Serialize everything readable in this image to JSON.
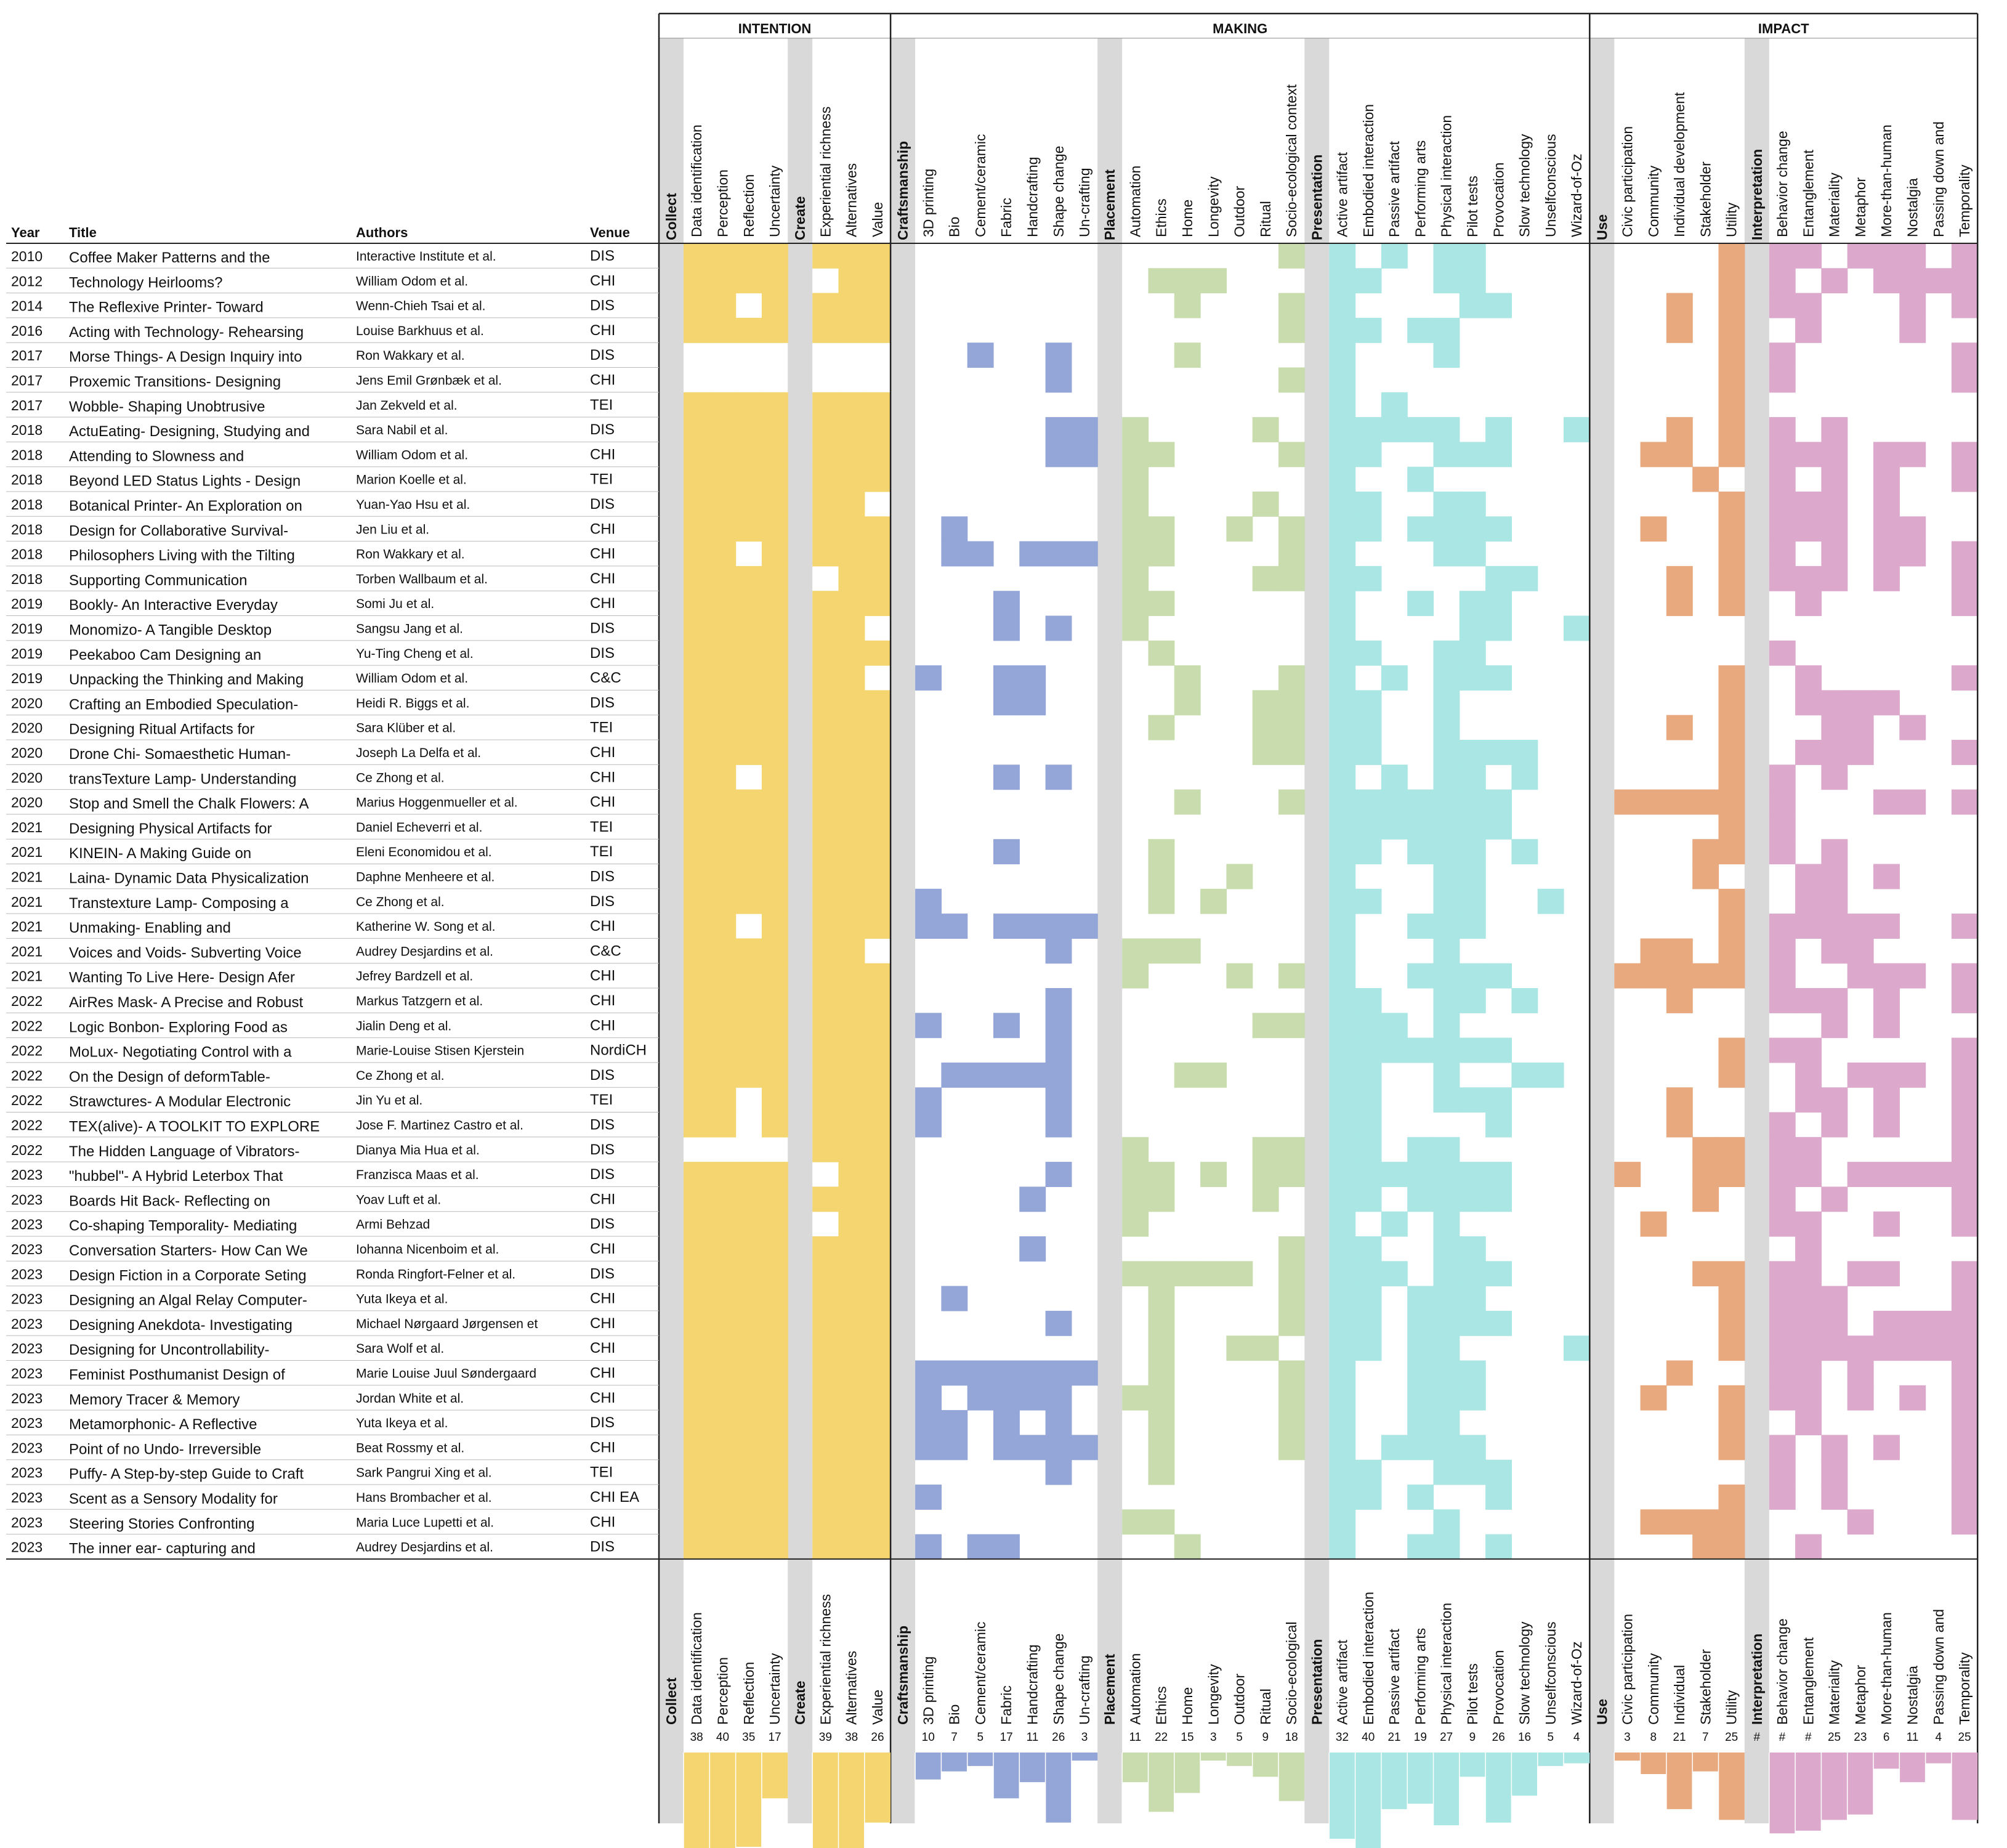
{
  "table_headers": {
    "year": "Year",
    "title": "Title",
    "authors": "Authors",
    "venue": "Venue"
  },
  "groups": [
    {
      "name": "INTENTION",
      "color": "#f4d56f",
      "subgroups": [
        {
          "label": "Collect",
          "columns": [
            "Data identification",
            "Perception",
            "Reflection",
            "Uncertainty"
          ]
        },
        {
          "label": "Create",
          "columns": [
            "Experiential richness",
            "Alternatives",
            "Value"
          ]
        }
      ]
    },
    {
      "name": "MAKING",
      "colors": [
        "#94a6d8",
        "#c9dcae",
        "#a9e6e4"
      ],
      "subgroups": [
        {
          "label": "Craftsmanship",
          "color": "#94a6d8",
          "columns": [
            "3D printing",
            "Bio",
            "Cement/ceramic",
            "Fabric",
            "Handcrafting",
            "Shape change",
            "Un-crafting"
          ]
        },
        {
          "label": "Placement",
          "color": "#c9dcae",
          "columns": [
            "Automation",
            "Ethics",
            "Home",
            "Longevity",
            "Outdoor",
            "Ritual",
            "Socio-ecological context"
          ]
        },
        {
          "label": "Presentation",
          "color": "#a9e6e4",
          "columns": [
            "Active artifact",
            "Embodied interaction",
            "Passive artifact",
            "Performing arts",
            "Physical interaction",
            "Pilot tests",
            "Provocation",
            "Slow technology",
            "Unselfconscious",
            "Wizard-of-Oz"
          ]
        }
      ]
    },
    {
      "name": "IMPACT",
      "colors": [
        "#e8a97e",
        "#dca8cc"
      ],
      "subgroups": [
        {
          "label": "Use",
          "color": "#e8a97e",
          "columns": [
            "Civic participation",
            "Community",
            "Individual development",
            "Stakeholder",
            "Utility"
          ]
        },
        {
          "label": "Interpretation",
          "color": "#dca8cc",
          "columns": [
            "Behavior change",
            "Entanglement",
            "Materiality",
            "Metaphor",
            "More-than-human",
            "Nostalgia",
            "Passing down and",
            "Temporality"
          ]
        }
      ]
    }
  ],
  "bottom_labels": {
    "Socio-ecological context": "Socio-ecological",
    "Individual development": "Individual"
  },
  "papers": [
    {
      "year": "2010",
      "title": "Coffee Maker Patterns and the",
      "authors": "Interactive Institute et al.",
      "venue": "DIS"
    },
    {
      "year": "2012",
      "title": "Technology Heirlooms?",
      "authors": "William Odom et al.",
      "venue": "CHI"
    },
    {
      "year": "2014",
      "title": "The Reflexive Printer- Toward",
      "authors": "Wenn-Chieh Tsai et al.",
      "venue": "DIS"
    },
    {
      "year": "2016",
      "title": "Acting with Technology- Rehearsing",
      "authors": "Louise Barkhuus et al.",
      "venue": "CHI"
    },
    {
      "year": "2017",
      "title": "Morse Things- A Design Inquiry into",
      "authors": "Ron Wakkary et al.",
      "venue": "DIS"
    },
    {
      "year": "2017",
      "title": "Proxemic Transitions- Designing",
      "authors": "Jens Emil Grønbæk et al.",
      "venue": "CHI"
    },
    {
      "year": "2017",
      "title": "Wobble- Shaping Unobtrusive",
      "authors": "Jan Zekveld et al.",
      "venue": "TEI"
    },
    {
      "year": "2018",
      "title": "ActuEating- Designing, Studying and",
      "authors": "Sara Nabil et al.",
      "venue": "DIS"
    },
    {
      "year": "2018",
      "title": "Attending to Slowness and",
      "authors": "William Odom et al.",
      "venue": "CHI"
    },
    {
      "year": "2018",
      "title": "Beyond LED Status Lights - Design",
      "authors": "Marion Koelle et al.",
      "venue": "TEI"
    },
    {
      "year": "2018",
      "title": "Botanical Printer- An Exploration on",
      "authors": "Yuan-Yao Hsu et al.",
      "venue": "DIS"
    },
    {
      "year": "2018",
      "title": "Design for Collaborative Survival-",
      "authors": "Jen Liu et al.",
      "venue": "CHI"
    },
    {
      "year": "2018",
      "title": "Philosophers Living with the Tilting",
      "authors": "Ron Wakkary et al.",
      "venue": "CHI"
    },
    {
      "year": "2018",
      "title": "Supporting Communication",
      "authors": "Torben Wallbaum et al.",
      "venue": "CHI"
    },
    {
      "year": "2019",
      "title": "Bookly- An Interactive Everyday",
      "authors": "Somi Ju et al.",
      "venue": "CHI"
    },
    {
      "year": "2019",
      "title": "Monomizo- A Tangible Desktop",
      "authors": "Sangsu Jang et al.",
      "venue": "DIS"
    },
    {
      "year": "2019",
      "title": "Peekaboo Cam Designing an",
      "authors": "Yu-Ting Cheng et al.",
      "venue": "DIS"
    },
    {
      "year": "2019",
      "title": "Unpacking the Thinking and Making",
      "authors": "William Odom et al.",
      "venue": "C&C"
    },
    {
      "year": "2020",
      "title": "Crafting an Embodied Speculation-",
      "authors": "Heidi R. Biggs et al.",
      "venue": "DIS"
    },
    {
      "year": "2020",
      "title": "Designing Ritual Artifacts for",
      "authors": "Sara Klüber et al.",
      "venue": "TEI"
    },
    {
      "year": "2020",
      "title": "Drone Chi- Somaesthetic Human-",
      "authors": "Joseph La Delfa et al.",
      "venue": "CHI"
    },
    {
      "year": "2020",
      "title": "transTexture Lamp- Understanding",
      "authors": "Ce Zhong et al.",
      "venue": "CHI"
    },
    {
      "year": "2020",
      "title": "Stop and Smell the Chalk Flowers: A",
      "authors": "Marius Hoggenmueller et al.",
      "venue": "CHI"
    },
    {
      "year": "2021",
      "title": "Designing Physical Artifacts for",
      "authors": "Daniel Echeverri et al.",
      "venue": "TEI"
    },
    {
      "year": "2021",
      "title": "KINEIN- A Making Guide on",
      "authors": "Eleni Economidou et al.",
      "venue": "TEI"
    },
    {
      "year": "2021",
      "title": "Laina- Dynamic Data Physicalization",
      "authors": "Daphne Menheere et al.",
      "venue": "DIS"
    },
    {
      "year": "2021",
      "title": "Transtexture Lamp- Composing a",
      "authors": "Ce Zhong et al.",
      "venue": "DIS"
    },
    {
      "year": "2021",
      "title": "Unmaking- Enabling and",
      "authors": "Katherine W. Song et al.",
      "venue": "CHI"
    },
    {
      "year": "2021",
      "title": "Voices and Voids- Subverting Voice",
      "authors": "Audrey Desjardins et al.",
      "venue": "C&C"
    },
    {
      "year": "2021",
      "title": "Wanting To Live Here- Design Afer",
      "authors": "Jefrey Bardzell et al.",
      "venue": "CHI"
    },
    {
      "year": "2022",
      "title": "AirRes Mask- A Precise and Robust",
      "authors": "Markus Tatzgern et al.",
      "venue": "CHI"
    },
    {
      "year": "2022",
      "title": "Logic Bonbon- Exploring Food as",
      "authors": "Jialin Deng et al.",
      "venue": "CHI"
    },
    {
      "year": "2022",
      "title": "MoLux- Negotiating Control with a",
      "authors": "Marie-Louise Stisen Kjerstein",
      "venue": "NordiCH"
    },
    {
      "year": "2022",
      "title": "On the Design of deformTable-",
      "authors": "Ce Zhong et al.",
      "venue": "DIS"
    },
    {
      "year": "2022",
      "title": "Strawctures- A Modular Electronic",
      "authors": "Jin Yu et al.",
      "venue": "TEI"
    },
    {
      "year": "2022",
      "title": "TEX(alive)- A TOOLKIT TO EXPLORE",
      "authors": "Jose F. Martinez Castro et al.",
      "venue": "DIS"
    },
    {
      "year": "2022",
      "title": "The Hidden Language of Vibrators-",
      "authors": "Dianya Mia Hua et al.",
      "venue": "DIS"
    },
    {
      "year": "2023",
      "title": "\"hubbel\"- A Hybrid Leterbox That",
      "authors": "Franzisca Maas et al.",
      "venue": "DIS"
    },
    {
      "year": "2023",
      "title": "Boards Hit Back- Reflecting on",
      "authors": "Yoav Luft et al.",
      "venue": "CHI"
    },
    {
      "year": "2023",
      "title": "Co-shaping Temporality- Mediating",
      "authors": "Armi Behzad",
      "venue": "DIS"
    },
    {
      "year": "2023",
      "title": "Conversation Starters- How Can We",
      "authors": "Iohanna Nicenboim et al.",
      "venue": "CHI"
    },
    {
      "year": "2023",
      "title": "Design Fiction in a Corporate Seting",
      "authors": "Ronda Ringfort-Felner et al.",
      "venue": "DIS"
    },
    {
      "year": "2023",
      "title": "Designing an Algal Relay Computer-",
      "authors": "Yuta Ikeya et al.",
      "venue": "CHI"
    },
    {
      "year": "2023",
      "title": "Designing Anekdota- Investigating",
      "authors": "Michael Nørgaard Jørgensen et",
      "venue": "CHI"
    },
    {
      "year": "2023",
      "title": "Designing for Uncontrollability-",
      "authors": "Sara Wolf et al.",
      "venue": "CHI"
    },
    {
      "year": "2023",
      "title": "Feminist Posthumanist Design of",
      "authors": "Marie Louise Juul Søndergaard",
      "venue": "CHI"
    },
    {
      "year": "2023",
      "title": "Memory Tracer & Memory",
      "authors": "Jordan White et al.",
      "venue": "CHI"
    },
    {
      "year": "2023",
      "title": "Metamorphonic- A Reflective",
      "authors": "Yuta Ikeya et al.",
      "venue": "DIS"
    },
    {
      "year": "2023",
      "title": "Point of no Undo- Irreversible",
      "authors": "Beat Rossmy et al.",
      "venue": "CHI"
    },
    {
      "year": "2023",
      "title": "Puffy- A Step-by-step Guide to Craft",
      "authors": "Sark Pangrui Xing et al.",
      "venue": "TEI"
    },
    {
      "year": "2023",
      "title": "Scent as a Sensory Modality for",
      "authors": "Hans Brombacher et al.",
      "venue": "CHI EA"
    },
    {
      "year": "2023",
      "title": "Steering Stories Confronting",
      "authors": "Maria Luce Lupetti et al.",
      "venue": "CHI"
    },
    {
      "year": "2023",
      "title": "The inner ear- capturing and",
      "authors": "Audrey Desjardins et al.",
      "venue": "DIS"
    }
  ],
  "chart_data": {
    "type": "heatmap",
    "title": "",
    "columns": [
      "Data identification",
      "Perception",
      "Reflection",
      "Uncertainty",
      "Experiential richness",
      "Alternatives",
      "Value",
      "3D printing",
      "Bio",
      "Cement/ceramic",
      "Fabric",
      "Handcrafting",
      "Shape change",
      "Un-crafting",
      "Automation",
      "Ethics",
      "Home",
      "Longevity",
      "Outdoor",
      "Ritual",
      "Socio-ecological context",
      "Active artifact",
      "Embodied interaction",
      "Passive artifact",
      "Performing arts",
      "Physical interaction",
      "Pilot tests",
      "Provocation",
      "Slow technology",
      "Unselfconscious",
      "Wizard-of-Oz",
      "Civic participation",
      "Community",
      "Individual development",
      "Stakeholder",
      "Utility",
      "Behavior change",
      "Entanglement",
      "Materiality",
      "Metaphor",
      "More-than-human",
      "Nostalgia",
      "Passing down and",
      "Temporality"
    ],
    "matrix": [
      "1111111 0000000 0000001 1010110000 00001 11011101",
      "1111011 0000000 0111000 1100110000 00001 10101111",
      "1101111 0000000 0010001 1000011000 00101 11000101",
      "1111111 0000000 0000001 1101100000 00101 01000100",
      "0000000 0010010 0010000 1000100000 00001 10000001",
      "0000000 0000010 0000001 1000000000 00001 10000001",
      "1111111 0000000 0000000 1010000000 00001 00000000",
      "1111111 0000011 1000010 1111101001 00101 10100000",
      "1111111 0000011 1100001 1100111000 01101 11101101",
      "1111111 0000000 1000000 1001000000 00010 10101001",
      "1111110 0000000 1000010 1100110000 00001 11101000",
      "1111111 0100000 1100101 1101111000 01001 11101100",
      "1101111 0110111 1100001 1000110000 00001 10101101",
      "1111011 0000000 1000011 1100001100 00101 11101001",
      "1111111 0001000 1100000 1001011000 00101 01000001",
      "1111110 0001010 1000000 1000011001 00000 00000000",
      "1111111 0000000 0100000 1100110000 00000 10000000",
      "1111110 1001100 0010001 1010111000 00001 01000001",
      "1111111 0001100 0010011 1100100000 00001 01111000",
      "1111111 0000000 0100011 1100100000 00101 00110100",
      "1111111 0000000 0000011 1100111100 00001 01110001",
      "1101111 0001010 0000000 1010110100 00001 10100000",
      "1111111 0000000 0010001 1111111000 11111 10001101",
      "1111111 0000000 0000000 1111111000 00001 10000000",
      "1111111 0001000 0100000 1101110100 00011 10100000",
      "1111111 0000000 0100100 1000110000 00010 01101000",
      "1111111 1000000 0101000 1100110010 00001 01100000",
      "1101111 1101111 0000000 1001110000 00001 11111001",
      "1111110 0000010 1110000 1000100000 01101 10110000",
      "1111111 0000000 1000101 1001111000 11111 10011101",
      "1111111 0000010 0000000 1100110100 00100 11101001",
      "1111111 1001010 0000011 1110100000 00000 00101000",
      "1111111 0000010 0000000 1111111000 00001 11000001",
      "1111111 0111110 0011000 1100100110 00001 01011101",
      "1101111 1000010 0000000 1100111000 00100 01101001",
      "1101111 1000010 0000000 1100001000 00100 10101001",
      "0000111 0000000 1000011 1101100000 00011 11000001",
      "1111011 0000010 1101011 1111111000 10011 11011111",
      "1111111 0000100 1100010 1101111000 00010 10100001",
      "1111011 0000000 1000000 1010100000 01000 11001001",
      "1111111 0000100 0000001 1100110000 00000 01000000",
      "1111111 0000000 1111101 1110111000 00011 11011001",
      "1111111 0100000 0100001 1101110000 00001 11100001",
      "1111111 0000010 0100001 1101111000 00001 11101111",
      "1111111 0000000 0100110 1101100001 00001 11111111",
      "1111111 1111111 0100001 1001110000 00100 11010001",
      "1111111 1011110 1100001 1001110000 01001 11010101",
      "1111111 1101010 0100001 1001100000 00001 01000001",
      "1111111 1101111 0100001 1011110000 00001 10101001",
      "1111111 0000010 0100000 1100111000 00000 10100001",
      "1111111 1000000 0000000 1101001000 00001 10100001",
      "1111111 0000000 1100000 1000100000 01111 00010001",
      "1111111 1011000 0010000 1001101000 00011 01000000"
    ],
    "totals": {
      "Data identification": 38,
      "Perception": 40,
      "Reflection": 35,
      "Uncertainty": 17,
      "Experiential richness": 39,
      "Alternatives": 38,
      "Value": 26,
      "3D printing": 10,
      "Bio": 7,
      "Cement/ceramic": 5,
      "Fabric": 17,
      "Handcrafting": 11,
      "Shape change": 26,
      "Un-crafting": 3,
      "Automation": 11,
      "Ethics": 22,
      "Home": 15,
      "Longevity": 3,
      "Outdoor": 5,
      "Ritual": 9,
      "Socio-ecological context": 18,
      "Active artifact": 32,
      "Embodied interaction": 40,
      "Passive artifact": 21,
      "Performing arts": 19,
      "Physical interaction": 27,
      "Pilot tests": 9,
      "Provocation": 26,
      "Slow technology": 16,
      "Unselfconscious": 5,
      "Wizard-of-Oz": 4,
      "Civic participation": 3,
      "Community": 8,
      "Individual development": 21,
      "Stakeholder": 7,
      "Utility": 25,
      "Behavior change": "#",
      "Entanglement": "#",
      "Materiality": 25,
      "Metaphor": 23,
      "More-than-human": 6,
      "Nostalgia": 11,
      "Passing down and": 4,
      "Temporality": 25
    },
    "hash_estimates": {
      "Behavior change": 30,
      "Entanglement": 29
    },
    "y_scale_max": 40
  }
}
